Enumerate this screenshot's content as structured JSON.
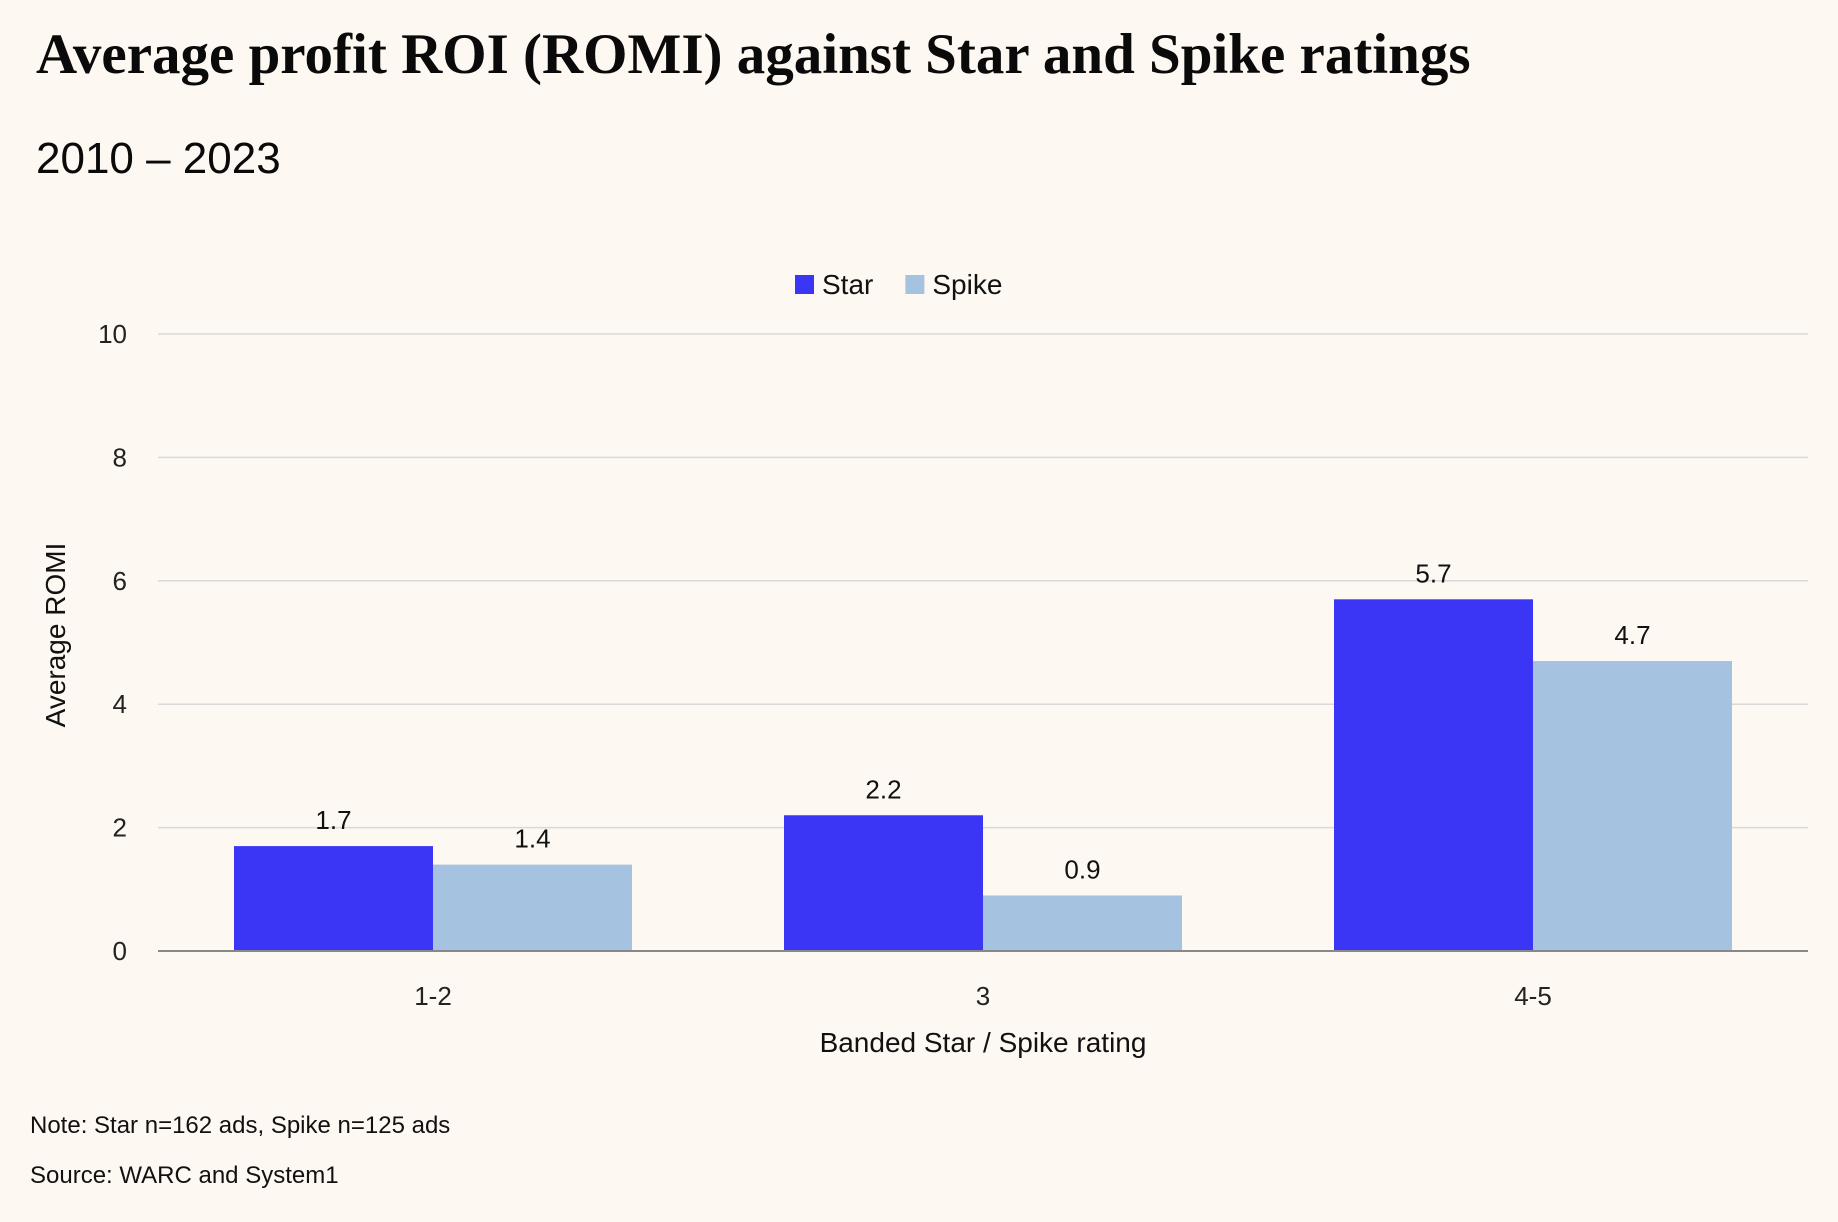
{
  "title": "Average profit ROI (ROMI) against Star and Spike ratings",
  "subtitle": "2010 – 2023",
  "note": "Note: Star n=162 ads, Spike n=125 ads",
  "source": "Source: WARC and System1",
  "chart_data": {
    "type": "bar",
    "categories": [
      "1-2",
      "3",
      "4-5"
    ],
    "series": [
      {
        "name": "Star",
        "values": [
          1.7,
          2.2,
          5.7
        ],
        "color": "#3b35f5"
      },
      {
        "name": "Spike",
        "values": [
          1.4,
          0.9,
          4.7
        ],
        "color": "#a5c3e0"
      }
    ],
    "data_labels": [
      [
        "1.7",
        "2.2",
        "5.7"
      ],
      [
        "1.4",
        "0.9",
        "4.7"
      ]
    ],
    "xlabel": "Banded Star / Spike rating",
    "ylabel": "Average ROMI",
    "ylim": [
      0,
      10
    ],
    "yticks": [
      "0",
      "2",
      "4",
      "6",
      "8",
      "10"
    ],
    "grid": true,
    "legend": "top-center"
  }
}
